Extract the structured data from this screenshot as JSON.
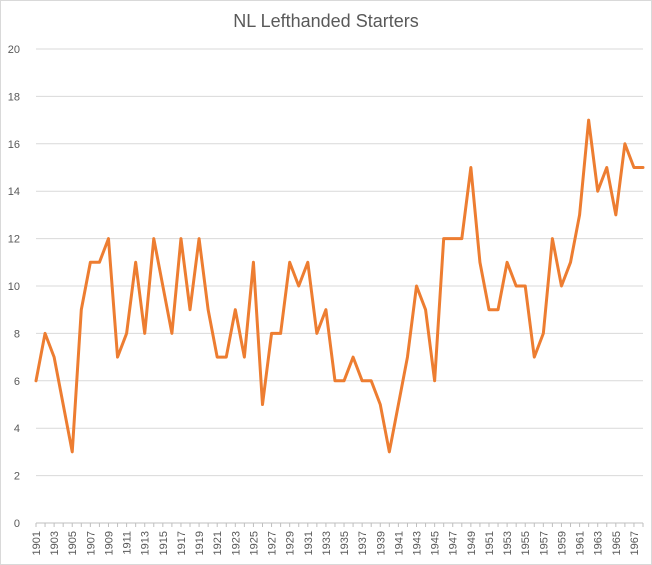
{
  "chart_data": {
    "type": "line",
    "title": "NL Lefthanded Starters",
    "xlabel": "",
    "ylabel": "",
    "ylim": [
      0,
      20
    ],
    "yticks": [
      0,
      2,
      4,
      6,
      8,
      10,
      12,
      14,
      16,
      18,
      20
    ],
    "grid": true,
    "legend": "none",
    "line_color": "#ED7D31",
    "x": [
      1901,
      1902,
      1903,
      1904,
      1905,
      1906,
      1907,
      1908,
      1909,
      1910,
      1911,
      1912,
      1913,
      1914,
      1915,
      1916,
      1917,
      1918,
      1919,
      1920,
      1921,
      1922,
      1923,
      1924,
      1925,
      1926,
      1927,
      1928,
      1929,
      1930,
      1931,
      1932,
      1933,
      1934,
      1935,
      1936,
      1937,
      1938,
      1939,
      1940,
      1941,
      1942,
      1943,
      1944,
      1945,
      1946,
      1947,
      1948,
      1949,
      1950,
      1951,
      1952,
      1953,
      1954,
      1955,
      1956,
      1957,
      1958,
      1959,
      1960,
      1961,
      1962,
      1963,
      1964,
      1965,
      1966,
      1967,
      1968
    ],
    "x_tick_labels": [
      "1901",
      "1903",
      "1905",
      "1907",
      "1909",
      "1911",
      "1913",
      "1915",
      "1917",
      "1919",
      "1921",
      "1923",
      "1925",
      "1927",
      "1929",
      "1931",
      "1933",
      "1935",
      "1937",
      "1939",
      "1941",
      "1943",
      "1945",
      "1947",
      "1949",
      "1951",
      "1953",
      "1955",
      "1957",
      "1959",
      "1961",
      "1963",
      "1965",
      "1967"
    ],
    "series": [
      {
        "values": [
          6,
          8,
          7,
          5,
          3,
          9,
          11,
          11,
          12,
          7,
          8,
          11,
          8,
          12,
          10,
          8,
          12,
          9,
          12,
          9,
          7,
          7,
          9,
          7,
          11,
          5,
          8,
          8,
          11,
          10,
          11,
          8,
          9,
          6,
          6,
          7,
          6,
          6,
          5,
          3,
          5,
          7,
          10,
          9,
          6,
          12,
          12,
          12,
          15,
          11,
          9,
          9,
          11,
          10,
          10,
          7,
          8,
          12,
          10,
          11,
          13,
          17,
          14,
          15,
          13,
          16,
          15,
          15
        ]
      }
    ]
  }
}
